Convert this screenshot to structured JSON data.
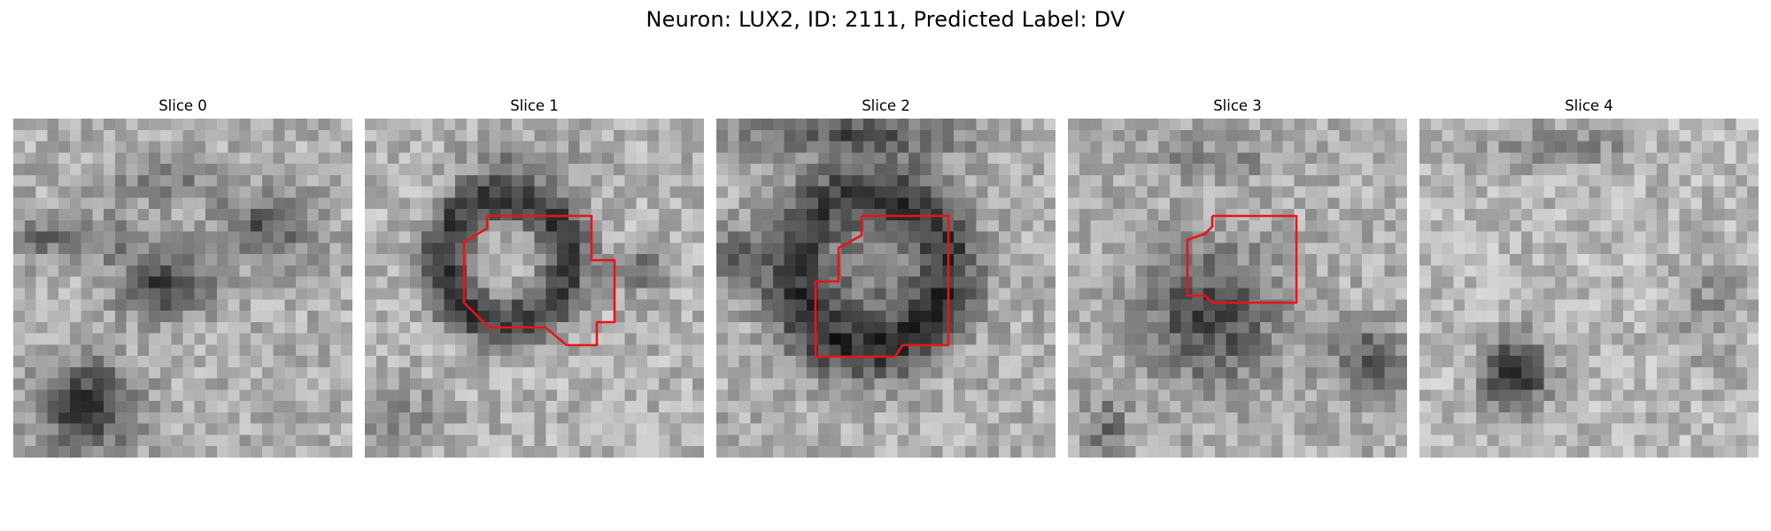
{
  "figure": {
    "title": "Neuron: LUX2, ID: 2111, Predicted Label: DV"
  },
  "panels": [
    {
      "title": "Slice 0",
      "has_contour": false
    },
    {
      "title": "Slice 1",
      "has_contour": true
    },
    {
      "title": "Slice 2",
      "has_contour": true
    },
    {
      "title": "Slice 3",
      "has_contour": true
    },
    {
      "title": "Slice 4",
      "has_contour": false
    }
  ],
  "style": {
    "colormap": "grayscale",
    "contour_color": "#e8141a",
    "background": "#ffffff"
  }
}
